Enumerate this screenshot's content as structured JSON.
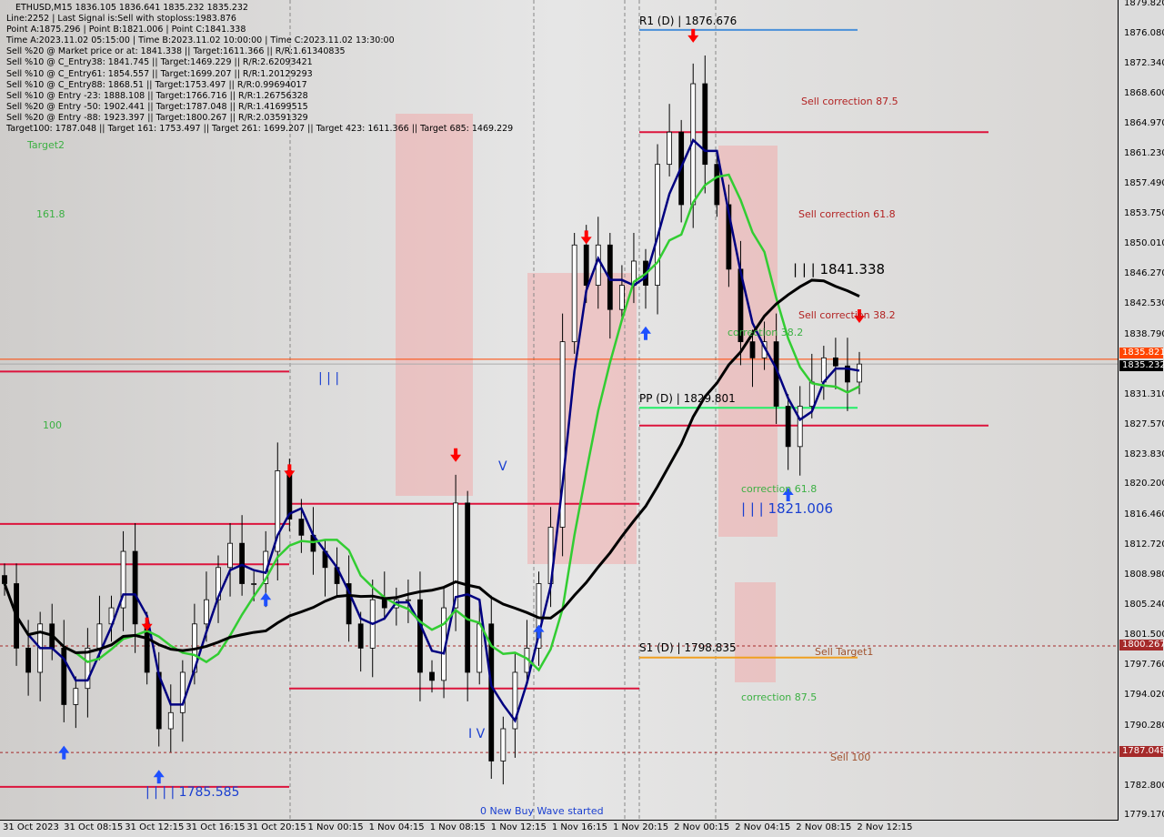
{
  "header": {
    "title": "ETHUSD,M15  1836.105 1836.641 1835.232 1835.232",
    "lines": [
      "Line:2252 | Last Signal is:Sell with stoploss:1983.876",
      "Point A:1875.296 | Point B:1821.006 | Point C:1841.338",
      "Time A:2023.11.02 05:15:00 | Time B:2023.11.02 10:00:00 | Time C:2023.11.02 13:30:00",
      "Sell %20 @ Market price or at: 1841.338 || Target:1611.366 || R/R:1.61340835",
      "Sell %10 @ C_Entry38: 1841.745 || Target:1469.229 || R/R:2.62093421",
      "Sell %10 @ C_Entry61: 1854.557 || Target:1699.207 || R/R:1.20129293",
      "Sell %10 @ C_Entry88: 1868.51 || Target:1753.497 || R/R:0.99694017",
      "Sell %10 @ Entry -23: 1888.108 || Target:1766.716 || R/R:1.26756328",
      "Sell %20 @ Entry -50: 1902.441 || Target:1787.048 || R/R:1.41699515",
      "Sell %20 @ Entry -88: 1923.397 || Target:1800.267 || R/R:2.03591329",
      "Target100: 1787.048 || Target 161: 1753.497 || Target 261: 1699.207 || Target 423: 1611.366 || Target 685: 1469.229"
    ]
  },
  "chart_data": {
    "type": "candlestick",
    "symbol": "ETHUSD",
    "timeframe": "M15",
    "ylim": [
      1779.17,
      1879.82
    ],
    "y_ticks": [
      "1879.820",
      "1876.080",
      "1872.340",
      "1868.600",
      "1864.970",
      "1861.230",
      "1857.490",
      "1853.750",
      "1850.010",
      "1846.270",
      "1842.530",
      "1838.790",
      "1831.310",
      "1827.570",
      "1823.830",
      "1820.200",
      "1816.460",
      "1812.720",
      "1808.980",
      "1805.240",
      "1801.500",
      "1797.760",
      "1794.020",
      "1790.280",
      "1782.800",
      "1779.170"
    ],
    "x_ticks": [
      "31 Oct 2023",
      "31 Oct 08:15",
      "31 Oct 12:15",
      "31 Oct 16:15",
      "31 Oct 20:15",
      "1 Nov 00:15",
      "1 Nov 04:15",
      "1 Nov 08:15",
      "1 Nov 12:15",
      "1 Nov 16:15",
      "1 Nov 20:15",
      "2 Nov 00:15",
      "2 Nov 04:15",
      "2 Nov 08:15",
      "2 Nov 12:15"
    ],
    "closes": [
      1808,
      1800,
      1797,
      1803,
      1800,
      1793,
      1795,
      1800,
      1803,
      1805,
      1812,
      1803,
      1797,
      1790,
      1792,
      1797,
      1803,
      1806,
      1810,
      1813,
      1808,
      1808,
      1812,
      1822,
      1816,
      1814,
      1812,
      1810,
      1808,
      1803,
      1800,
      1806,
      1805,
      1806,
      1806,
      1797,
      1796,
      1805,
      1818,
      1797,
      1803,
      1786,
      1790,
      1797,
      1800,
      1808,
      1815,
      1838,
      1850,
      1845,
      1850,
      1842,
      1845,
      1848,
      1845,
      1860,
      1864,
      1855,
      1870,
      1860,
      1855,
      1847,
      1838,
      1836,
      1838,
      1830,
      1825,
      1830,
      1833,
      1836,
      1835,
      1833,
      1835.232
    ],
    "price_tags": {
      "ask": "1835.821",
      "bid": "1835.232",
      "level1": "1800.267",
      "level2": "1787.048"
    },
    "colors": {
      "ma_fast": "#000080",
      "ma_mid": "#32cd32",
      "ma_slow": "#000000",
      "ask_line": "#ff4500",
      "level": "#dc143c"
    },
    "levels": [
      {
        "label": "R1 (D) | 1876.676",
        "price": 1876.676,
        "color": "#4a90d9"
      },
      {
        "label": "PP (D) | 1829.801",
        "price": 1829.801,
        "color": "#22ee66"
      },
      {
        "label": "S1 (D) | 1798.835",
        "price": 1798.835,
        "color": "#f0a020"
      }
    ],
    "annotations": {
      "target2": "Target2",
      "f1618": "161.8",
      "f100": "100",
      "sell875": "Sell correction 87.5",
      "sell618": "Sell correction 61.8",
      "sell382": "Sell correction 38.2",
      "pointC": "| | | 1841.338",
      "pointB": "| | | 1821.006",
      "corr382": "correction 38.2",
      "corr618": "correction 61.8",
      "corr875": "correction 87.5",
      "sellTarget1": "Sell Target1",
      "sell100": "Sell 100",
      "wave3": "| | |",
      "wave5": "V",
      "wave4": "I V",
      "wave_low": "| | | | 1785.585",
      "new_wave": "0 New Buy Wave started"
    }
  }
}
